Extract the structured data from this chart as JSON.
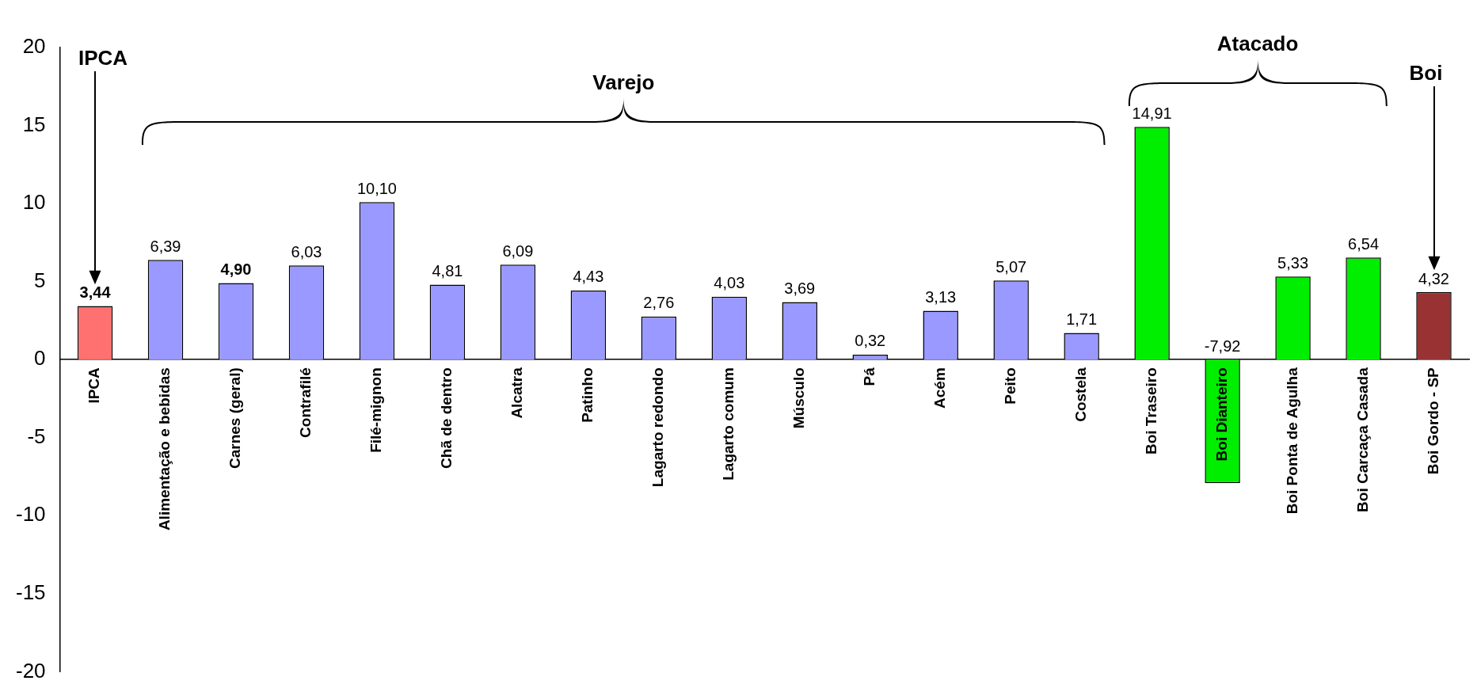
{
  "chart_data": {
    "type": "bar",
    "categories": [
      "IPCA",
      "Alimentação e bebidas",
      "Carnes (geral)",
      "Contrafilé",
      "Filé-mignon",
      "Chã de dentro",
      "Alcatra",
      "Patinho",
      "Lagarto redondo",
      "Lagarto comum",
      "Músculo",
      "Pá",
      "Acém",
      "Peito",
      "Costela",
      "Boi Traseiro",
      "Boi Dianteiro",
      "Boi Ponta de Agulha",
      "Boi Carcaça Casada",
      "Boi Gordo - SP"
    ],
    "values": [
      3.44,
      6.39,
      4.9,
      6.03,
      10.1,
      4.81,
      6.09,
      4.43,
      2.76,
      4.03,
      3.69,
      0.32,
      3.13,
      5.07,
      1.71,
      14.91,
      -7.92,
      5.33,
      6.54,
      4.32
    ],
    "value_labels": [
      "3,44",
      "6,39",
      "4,90",
      "6,03",
      "10,10",
      "4,81",
      "6,09",
      "4,43",
      "2,76",
      "4,03",
      "3,69",
      "0,32",
      "3,13",
      "5,07",
      "1,71",
      "14,91",
      "-7,92",
      "5,33",
      "6,54",
      "4,32"
    ],
    "colors": [
      "#ff7070",
      "#9999ff",
      "#9999ff",
      "#9999ff",
      "#9999ff",
      "#9999ff",
      "#9999ff",
      "#9999ff",
      "#9999ff",
      "#9999ff",
      "#9999ff",
      "#9999ff",
      "#9999ff",
      "#9999ff",
      "#9999ff",
      "#00ee00",
      "#00ee00",
      "#00ee00",
      "#00ee00",
      "#993333"
    ],
    "ylim": [
      -20,
      20
    ],
    "yticks": [
      -20,
      -15,
      -10,
      -5,
      0,
      5,
      10,
      15,
      20
    ],
    "grid": false,
    "legend": false,
    "annotations": [
      "IPCA",
      "Varejo",
      "Atacado",
      "Boi"
    ]
  }
}
